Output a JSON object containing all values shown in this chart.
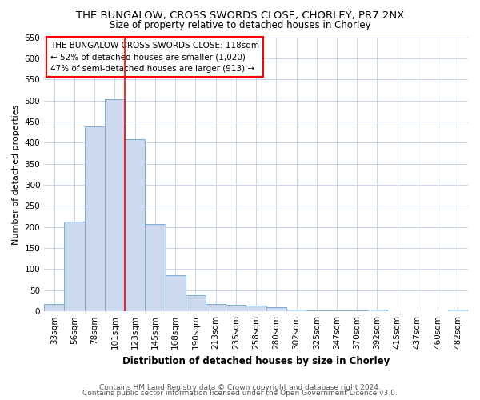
{
  "title": "THE BUNGALOW, CROSS SWORDS CLOSE, CHORLEY, PR7 2NX",
  "subtitle": "Size of property relative to detached houses in Chorley",
  "xlabel": "Distribution of detached houses by size in Chorley",
  "ylabel": "Number of detached properties",
  "categories": [
    "33sqm",
    "56sqm",
    "78sqm",
    "101sqm",
    "123sqm",
    "145sqm",
    "168sqm",
    "190sqm",
    "213sqm",
    "235sqm",
    "258sqm",
    "280sqm",
    "302sqm",
    "325sqm",
    "347sqm",
    "370sqm",
    "392sqm",
    "415sqm",
    "437sqm",
    "460sqm",
    "482sqm"
  ],
  "values": [
    18,
    213,
    438,
    503,
    408,
    207,
    85,
    38,
    18,
    15,
    13,
    10,
    5,
    3,
    3,
    3,
    4,
    0,
    0,
    0,
    5
  ],
  "bar_color": "#ccd9ee",
  "bar_edge_color": "#7aaad4",
  "vline_position": 3.5,
  "vline_color": "red",
  "annotation_text_line1": "THE BUNGALOW CROSS SWORDS CLOSE: 118sqm",
  "annotation_text_line2": "← 52% of detached houses are smaller (1,020)",
  "annotation_text_line3": "47% of semi-detached houses are larger (913) →",
  "annotation_box_color": "red",
  "annotation_fill_color": "white",
  "ylim": [
    0,
    650
  ],
  "yticks": [
    0,
    50,
    100,
    150,
    200,
    250,
    300,
    350,
    400,
    450,
    500,
    550,
    600,
    650
  ],
  "footnote1": "Contains HM Land Registry data © Crown copyright and database right 2024.",
  "footnote2": "Contains public sector information licensed under the Open Government Licence v3.0.",
  "background_color": "white",
  "grid_color": "#c8d4e8",
  "title_fontsize": 9.5,
  "subtitle_fontsize": 8.5,
  "xlabel_fontsize": 8.5,
  "ylabel_fontsize": 8,
  "tick_fontsize": 7.5,
  "footnote_fontsize": 6.5
}
